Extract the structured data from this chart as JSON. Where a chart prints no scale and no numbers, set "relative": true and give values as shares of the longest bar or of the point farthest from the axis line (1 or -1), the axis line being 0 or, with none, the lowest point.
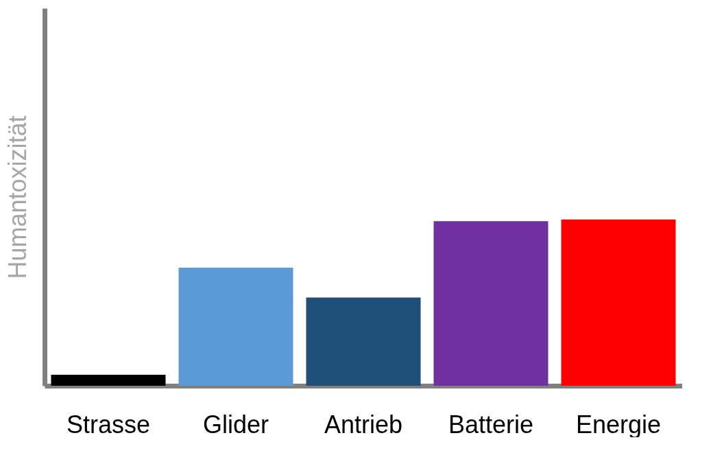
{
  "chart_data": {
    "type": "bar",
    "relative": true,
    "ylabel": "Humantoxizität",
    "categories": [
      "Strasse",
      "Glider",
      "Antrieb",
      "Batterie",
      "Energie"
    ],
    "values": [
      0.066,
      0.71,
      0.53,
      0.99,
      1
    ],
    "colors": [
      "#000000",
      "#5b9bd5",
      "#1f4e79",
      "#7030a0",
      "#ff0000"
    ],
    "grid": false
  }
}
